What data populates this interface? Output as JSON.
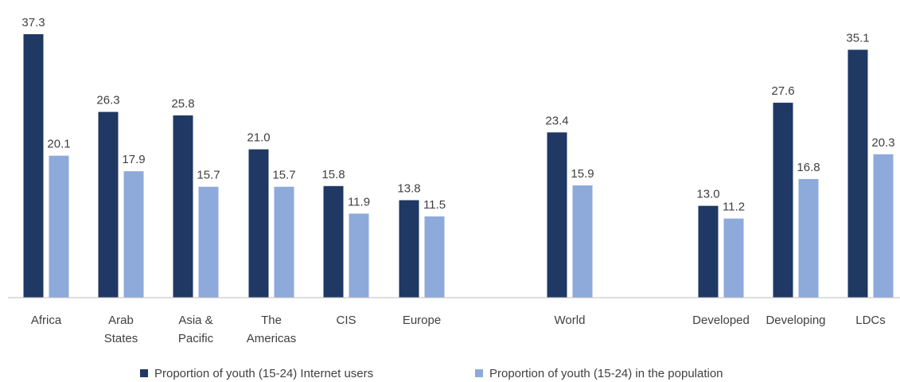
{
  "chart_data": {
    "type": "bar",
    "title": "",
    "xlabel": "",
    "ylabel": "",
    "ylim": [
      0,
      40
    ],
    "grid": false,
    "legend_position": "bottom",
    "colors": {
      "internet_users": "#1f3864",
      "population": "#8eaadb"
    },
    "categories": [
      [
        "Africa"
      ],
      [
        "Arab",
        "States"
      ],
      [
        "Asia &",
        "Pacific"
      ],
      [
        "The",
        "Americas"
      ],
      [
        "CIS"
      ],
      [
        "Europe"
      ],
      [
        "World"
      ],
      [
        "Developed"
      ],
      [
        "Developing"
      ],
      [
        "LDCs"
      ]
    ],
    "series": [
      {
        "name": "Proportion of youth (15-24) Internet users",
        "values": [
          37.3,
          26.3,
          25.8,
          21.0,
          15.8,
          13.8,
          23.4,
          13.0,
          27.6,
          35.1
        ],
        "labels": [
          "37.3",
          "26.3",
          "25.8",
          "21.0",
          "15.8",
          "13.8",
          "23.4",
          "13.0",
          "27.6",
          "35.1"
        ]
      },
      {
        "name": "Proportion of youth (15-24) in the population",
        "values": [
          20.1,
          17.9,
          15.7,
          15.7,
          11.9,
          11.5,
          15.9,
          11.2,
          16.8,
          20.3
        ],
        "labels": [
          "20.1",
          "17.9",
          "15.7",
          "15.7",
          "11.9",
          "11.5",
          "15.9",
          "11.2",
          "16.8",
          "20.3"
        ]
      }
    ]
  }
}
